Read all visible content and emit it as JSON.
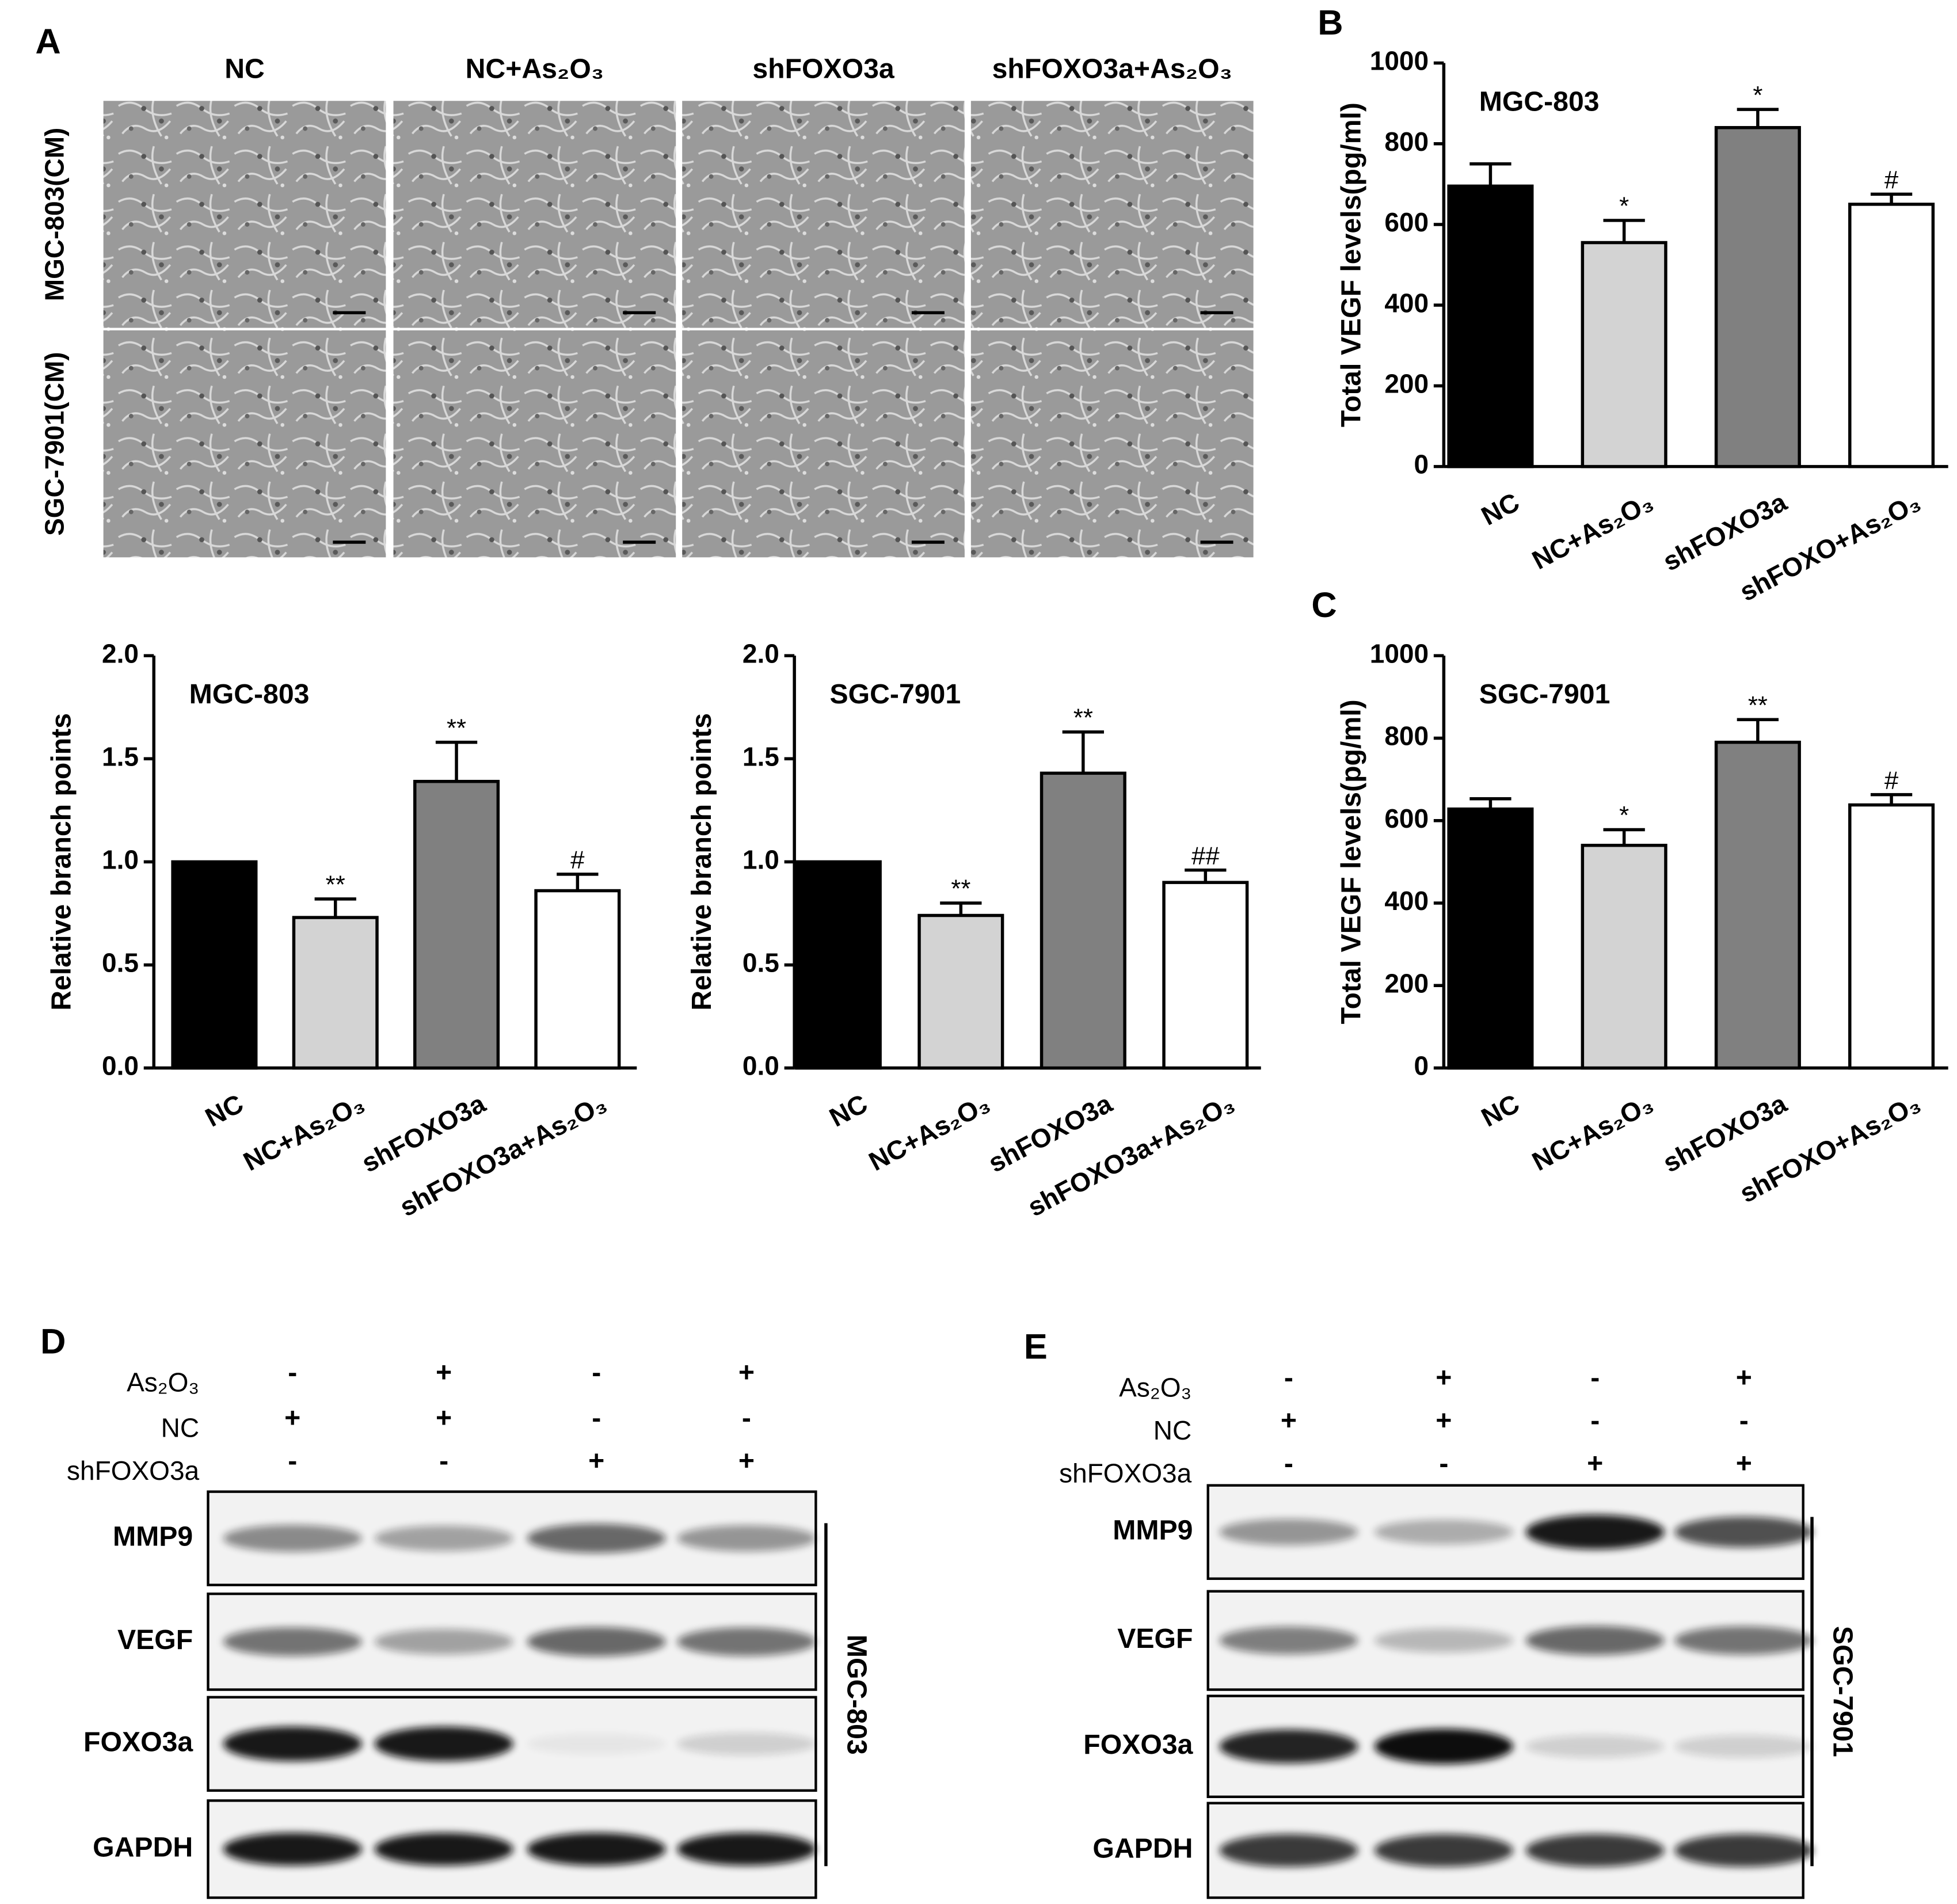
{
  "panel_labels": [
    "A",
    "B",
    "C",
    "D",
    "E"
  ],
  "micrographs": {
    "columns": [
      "NC",
      "NC+As₂O₃",
      "shFOXO3a",
      "shFOXO3a+As₂O₃"
    ],
    "rows": [
      "MGC-803(CM)",
      "SGC-7901(CM)"
    ]
  },
  "chart_data": [
    {
      "type": "bar",
      "title": "MGC-803",
      "ylabel": "Relative branch points",
      "categories": [
        "NC",
        "NC+As₂O₃",
        "shFOXO3a",
        "shFOXO3a+As₂O₃"
      ],
      "values": [
        1.0,
        0.73,
        1.39,
        0.86
      ],
      "errors": [
        null,
        0.09,
        0.19,
        0.08
      ],
      "annotations": [
        null,
        "**",
        "**",
        "#"
      ],
      "colors": [
        "#000000",
        "#d3d3d3",
        "#808080",
        "#ffffff"
      ],
      "ylim": [
        0,
        2
      ],
      "yticks": [
        {
          "value": 0,
          "label": "0.0"
        },
        {
          "value": 0.5,
          "label": "0.5"
        },
        {
          "value": 1,
          "label": "1.0"
        },
        {
          "value": 1.5,
          "label": "1.5"
        },
        {
          "value": 2,
          "label": "2.0"
        }
      ]
    },
    {
      "type": "bar",
      "title": "SGC-7901",
      "ylabel": "Relative branch points",
      "categories": [
        "NC",
        "NC+As₂O₃",
        "shFOXO3a",
        "shFOXO3a+As₂O₃"
      ],
      "values": [
        1.0,
        0.74,
        1.43,
        0.9
      ],
      "errors": [
        null,
        0.06,
        0.2,
        0.06
      ],
      "annotations": [
        null,
        "**",
        "**",
        "##"
      ],
      "colors": [
        "#000000",
        "#d3d3d3",
        "#808080",
        "#ffffff"
      ],
      "ylim": [
        0,
        2
      ],
      "yticks": [
        {
          "value": 0,
          "label": "0.0"
        },
        {
          "value": 0.5,
          "label": "0.5"
        },
        {
          "value": 1,
          "label": "1.0"
        },
        {
          "value": 1.5,
          "label": "1.5"
        },
        {
          "value": 2,
          "label": "2.0"
        }
      ]
    },
    {
      "type": "bar",
      "title": "MGC-803",
      "ylabel": "Total VEGF levels(pg/ml)",
      "categories": [
        "NC",
        "NC+As₂O₃",
        "shFOXO3a",
        "shFOXO+As₂O₃"
      ],
      "values": [
        695,
        555,
        840,
        650
      ],
      "errors": [
        55,
        55,
        45,
        25
      ],
      "annotations": [
        null,
        "*",
        "*",
        "#"
      ],
      "colors": [
        "#000000",
        "#d3d3d3",
        "#808080",
        "#ffffff"
      ],
      "ylim": [
        0,
        1000
      ],
      "yticks": [
        0,
        200,
        400,
        600,
        800,
        1000
      ]
    },
    {
      "type": "bar",
      "title": "SGC-7901",
      "ylabel": "Total VEGF levels(pg/ml)",
      "categories": [
        "NC",
        "NC+As₂O₃",
        "shFOXO3a",
        "shFOXO+As₂O₃"
      ],
      "values": [
        628,
        540,
        790,
        638
      ],
      "errors": [
        25,
        38,
        55,
        25
      ],
      "annotations": [
        null,
        "*",
        "**",
        "#"
      ],
      "colors": [
        "#000000",
        "#d3d3d3",
        "#808080",
        "#ffffff"
      ],
      "ylim": [
        0,
        1000
      ],
      "yticks": [
        0,
        200,
        400,
        600,
        800,
        1000
      ]
    }
  ],
  "blots": [
    {
      "cell_line": "MGC-803",
      "treatments": [
        {
          "name": "As₂O₃",
          "signs": [
            "-",
            "+",
            "-",
            "+"
          ]
        },
        {
          "name": "NC",
          "signs": [
            "+",
            "+",
            "-",
            "-"
          ]
        },
        {
          "name": "shFOXO3a",
          "signs": [
            "-",
            "-",
            "+",
            "+"
          ]
        }
      ],
      "bands": [
        "MMP9",
        "VEGF",
        "FOXO3a",
        "GAPDH"
      ]
    },
    {
      "cell_line": "SGC-7901",
      "treatments": [
        {
          "name": "As₂O₃",
          "signs": [
            "-",
            "+",
            "-",
            "+"
          ]
        },
        {
          "name": "NC",
          "signs": [
            "+",
            "+",
            "-",
            "-"
          ]
        },
        {
          "name": "shFOXO3a",
          "signs": [
            "-",
            "-",
            "+",
            "+"
          ]
        }
      ],
      "bands": [
        "MMP9",
        "VEGF",
        "FOXO3a",
        "GAPDH"
      ]
    }
  ]
}
